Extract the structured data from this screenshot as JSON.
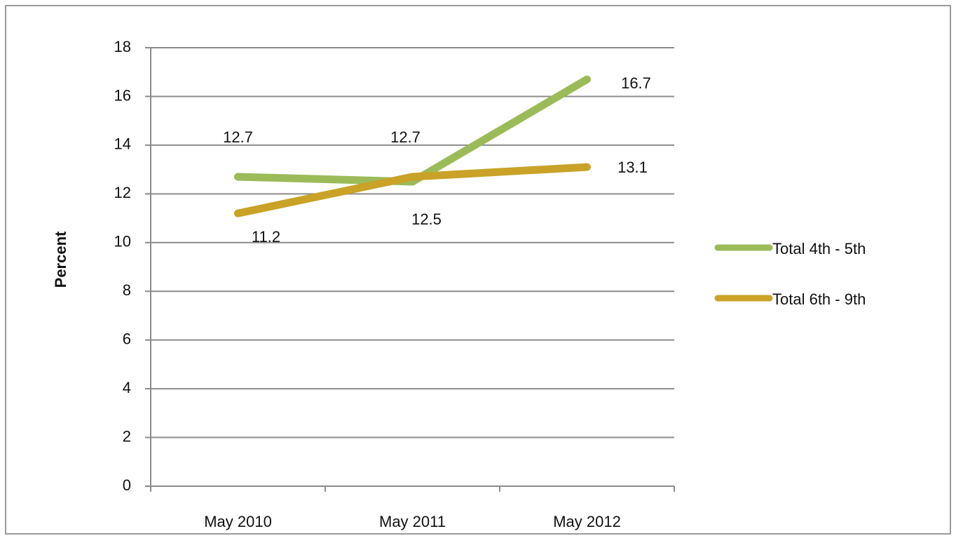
{
  "chart_data": {
    "type": "line",
    "y_label": "Percent",
    "categories": [
      "May 2010",
      "May 2011",
      "May 2012"
    ],
    "series": [
      {
        "name": "Total 4th - 5th",
        "color": "#9bbb59",
        "values": [
          12.7,
          12.5,
          16.7
        ]
      },
      {
        "name": "Total 6th - 9th",
        "color": "#c9a227",
        "values": [
          11.2,
          12.7,
          13.1
        ]
      }
    ],
    "ylim": [
      0,
      18
    ],
    "yticks": [
      0,
      2,
      4,
      6,
      8,
      10,
      12,
      14,
      16,
      18
    ],
    "grid": true,
    "legend": "right"
  }
}
